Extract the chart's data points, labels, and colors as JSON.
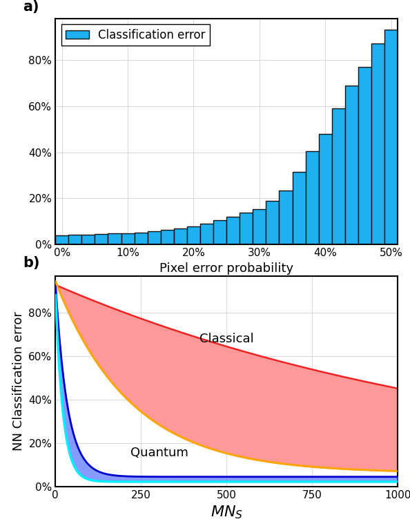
{
  "panel_a": {
    "bar_x": [
      0,
      1,
      2,
      3,
      4,
      5,
      6,
      7,
      8,
      9,
      10,
      11,
      12,
      13,
      14,
      15,
      16,
      17,
      18,
      19,
      20,
      21,
      22,
      23,
      24,
      25
    ],
    "bar_heights": [
      0.04,
      0.042,
      0.044,
      0.046,
      0.048,
      0.05,
      0.053,
      0.057,
      0.063,
      0.07,
      0.08,
      0.092,
      0.105,
      0.12,
      0.138,
      0.155,
      0.19,
      0.235,
      0.315,
      0.405,
      0.48,
      0.59,
      0.69,
      0.77,
      0.87,
      0.93
    ],
    "bar_color": "#1EB0F0",
    "bar_edgecolor": "#111111",
    "bar_linewidth": 1.0,
    "xlabel": "Pixel error probability",
    "yticks": [
      0.0,
      0.2,
      0.4,
      0.6,
      0.8
    ],
    "xticks": [
      0,
      5,
      10,
      15,
      20,
      25
    ],
    "xticklabels": [
      "0%",
      "10%",
      "20%",
      "30%",
      "40%",
      "50%"
    ],
    "yticklabels": [
      "0%",
      "20%",
      "40%",
      "60%",
      "80%"
    ],
    "ylim": [
      0,
      0.98
    ],
    "legend_label": "Classification error",
    "title_label": "a)"
  },
  "panel_b": {
    "xlabel": "$MN_S$",
    "ylabel": "NN Classification error",
    "yticks": [
      0.0,
      0.2,
      0.4,
      0.6,
      0.8
    ],
    "yticklabels": [
      "0%",
      "20%",
      "40%",
      "60%",
      "80%"
    ],
    "xticks": [
      0,
      250,
      500,
      750,
      1000
    ],
    "xticklabels": [
      "0",
      "250",
      "500",
      "750",
      "1000"
    ],
    "ylim": [
      0,
      0.97
    ],
    "xlim": [
      0,
      1000
    ],
    "classical_fill_color": "#FF9999",
    "classical_line_color": "#EE2222",
    "orange_line_color": "#FFA500",
    "quantum_fill_color": "#4466FF",
    "quantum_line_color": "#0000CC",
    "cyan_line_color": "#00EEFF",
    "classical_label": "Classical",
    "quantum_label": "Quantum",
    "title_label": "b)"
  },
  "fig_background": "#FFFFFF",
  "font_size": 12,
  "tick_font_size": 11,
  "label_font_size": 13
}
